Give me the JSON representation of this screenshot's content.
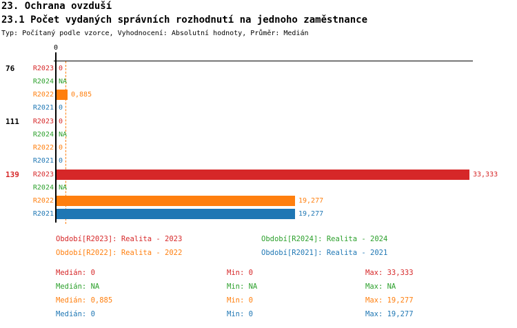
{
  "header": {
    "title": "23. Ochrana ovzduší",
    "subtitle": "23.1 Počet vydaných správních rozhodnutí na jednoho zaměstnance",
    "meta": "Typ: Počítaný podle vzorce, Vyhodnocení: Absolutní hodnoty, Průměr: Medián"
  },
  "colors": {
    "R2023": "#d62728",
    "R2024": "#2ca02c",
    "R2022": "#ff7f0e",
    "R2021": "#1f77b4",
    "axis": "#000000"
  },
  "chart_data": {
    "type": "bar",
    "orientation": "horizontal",
    "origin_label": "0",
    "xlim": [
      0,
      33.333
    ],
    "grid": false,
    "median_line": {
      "series": "R2022",
      "value": 0.885,
      "style": "dashed"
    },
    "series_order": [
      "R2023",
      "R2024",
      "R2022",
      "R2021"
    ],
    "groups": [
      {
        "label": "76",
        "label_color": "#000000",
        "rows": [
          {
            "series": "R2023",
            "value": 0,
            "display": "0"
          },
          {
            "series": "R2024",
            "value": null,
            "display": "NA"
          },
          {
            "series": "R2022",
            "value": 0.885,
            "display": "0,885"
          },
          {
            "series": "R2021",
            "value": 0,
            "display": "0"
          }
        ]
      },
      {
        "label": "111",
        "label_color": "#000000",
        "rows": [
          {
            "series": "R2023",
            "value": 0,
            "display": "0"
          },
          {
            "series": "R2024",
            "value": null,
            "display": "NA"
          },
          {
            "series": "R2022",
            "value": 0,
            "display": "0"
          },
          {
            "series": "R2021",
            "value": 0,
            "display": "0"
          }
        ]
      },
      {
        "label": "139",
        "label_color": "#d62728",
        "rows": [
          {
            "series": "R2023",
            "value": 33.333,
            "display": "33,333"
          },
          {
            "series": "R2024",
            "value": null,
            "display": "NA"
          },
          {
            "series": "R2022",
            "value": 19.277,
            "display": "19,277"
          },
          {
            "series": "R2021",
            "value": 19.277,
            "display": "19,277"
          }
        ]
      }
    ]
  },
  "legend": {
    "items": [
      {
        "series": "R2023",
        "label": "Období[R2023]: Realita - 2023"
      },
      {
        "series": "R2024",
        "label": "Období[R2024]: Realita - 2024"
      },
      {
        "series": "R2022",
        "label": "Období[R2022]: Realita - 2022"
      },
      {
        "series": "R2021",
        "label": "Období[R2021]: Realita - 2021"
      }
    ]
  },
  "stats": {
    "median_label": "Medián: ",
    "min_label": "Min: ",
    "max_label": "Max: ",
    "rows": [
      {
        "series": "R2023",
        "median": "0",
        "min": "0",
        "max": "33,333"
      },
      {
        "series": "R2024",
        "median": "NA",
        "min": "NA",
        "max": "NA"
      },
      {
        "series": "R2022",
        "median": "0,885",
        "min": "0",
        "max": "19,277"
      },
      {
        "series": "R2021",
        "median": "0",
        "min": "0",
        "max": "19,277"
      }
    ]
  }
}
